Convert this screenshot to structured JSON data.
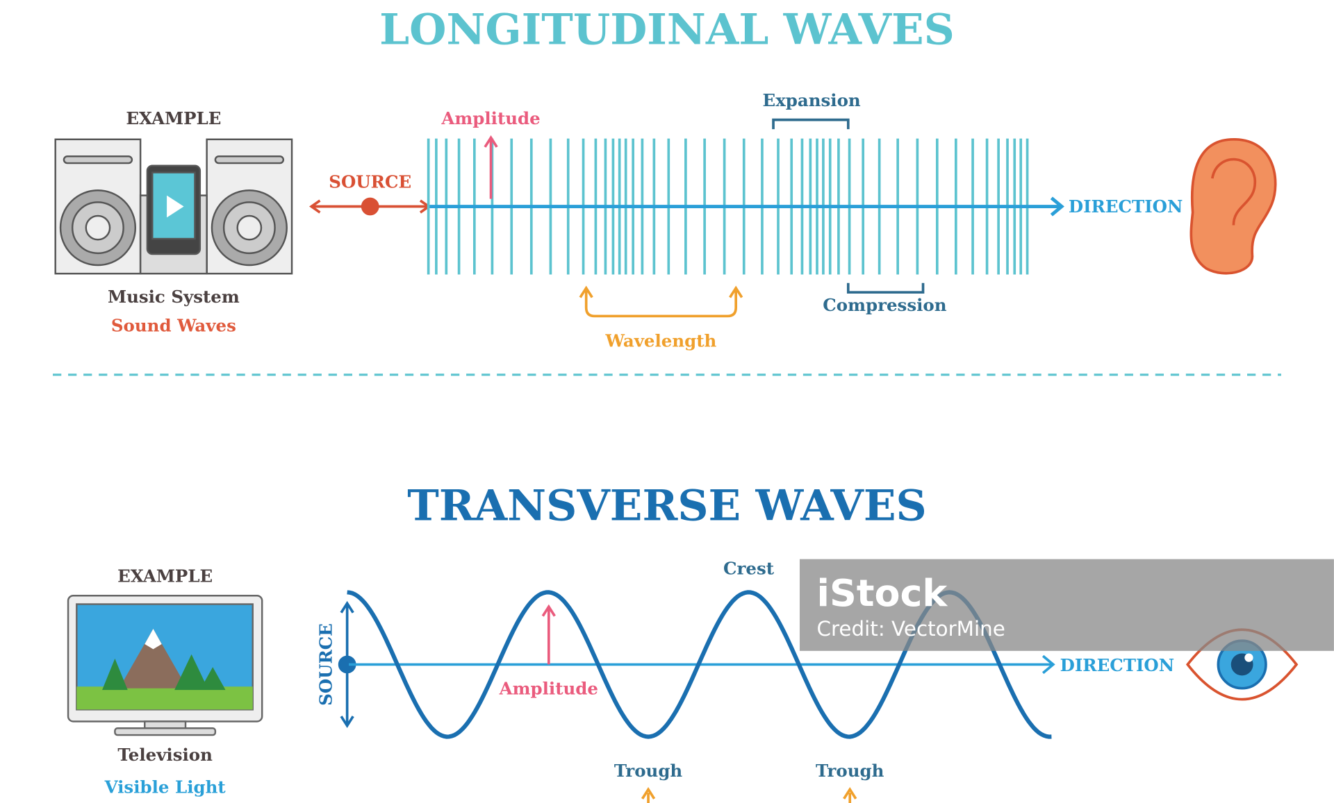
{
  "longitudinal": {
    "title": "LONGITUDINAL WAVES",
    "example_heading": "EXAMPLE",
    "example": "Music System",
    "wave_kind": "Sound Waves",
    "source": "SOURCE",
    "direction": "DIRECTION",
    "amplitude": "Amplitude",
    "expansion": "Expansion",
    "compression": "Compression",
    "wavelength": "Wavelength"
  },
  "transverse": {
    "title": "TRANSVERSE WAVES",
    "example_heading": "EXAMPLE",
    "example": "Television",
    "wave_kind": "Visible Light",
    "source": "SOURCE",
    "direction": "DIRECTION",
    "amplitude": "Amplitude",
    "crest": "Crest",
    "troughs": [
      "Trough",
      "Trough"
    ]
  },
  "watermark": {
    "brand": "iStock",
    "credit": "Credit: VectorMine"
  }
}
